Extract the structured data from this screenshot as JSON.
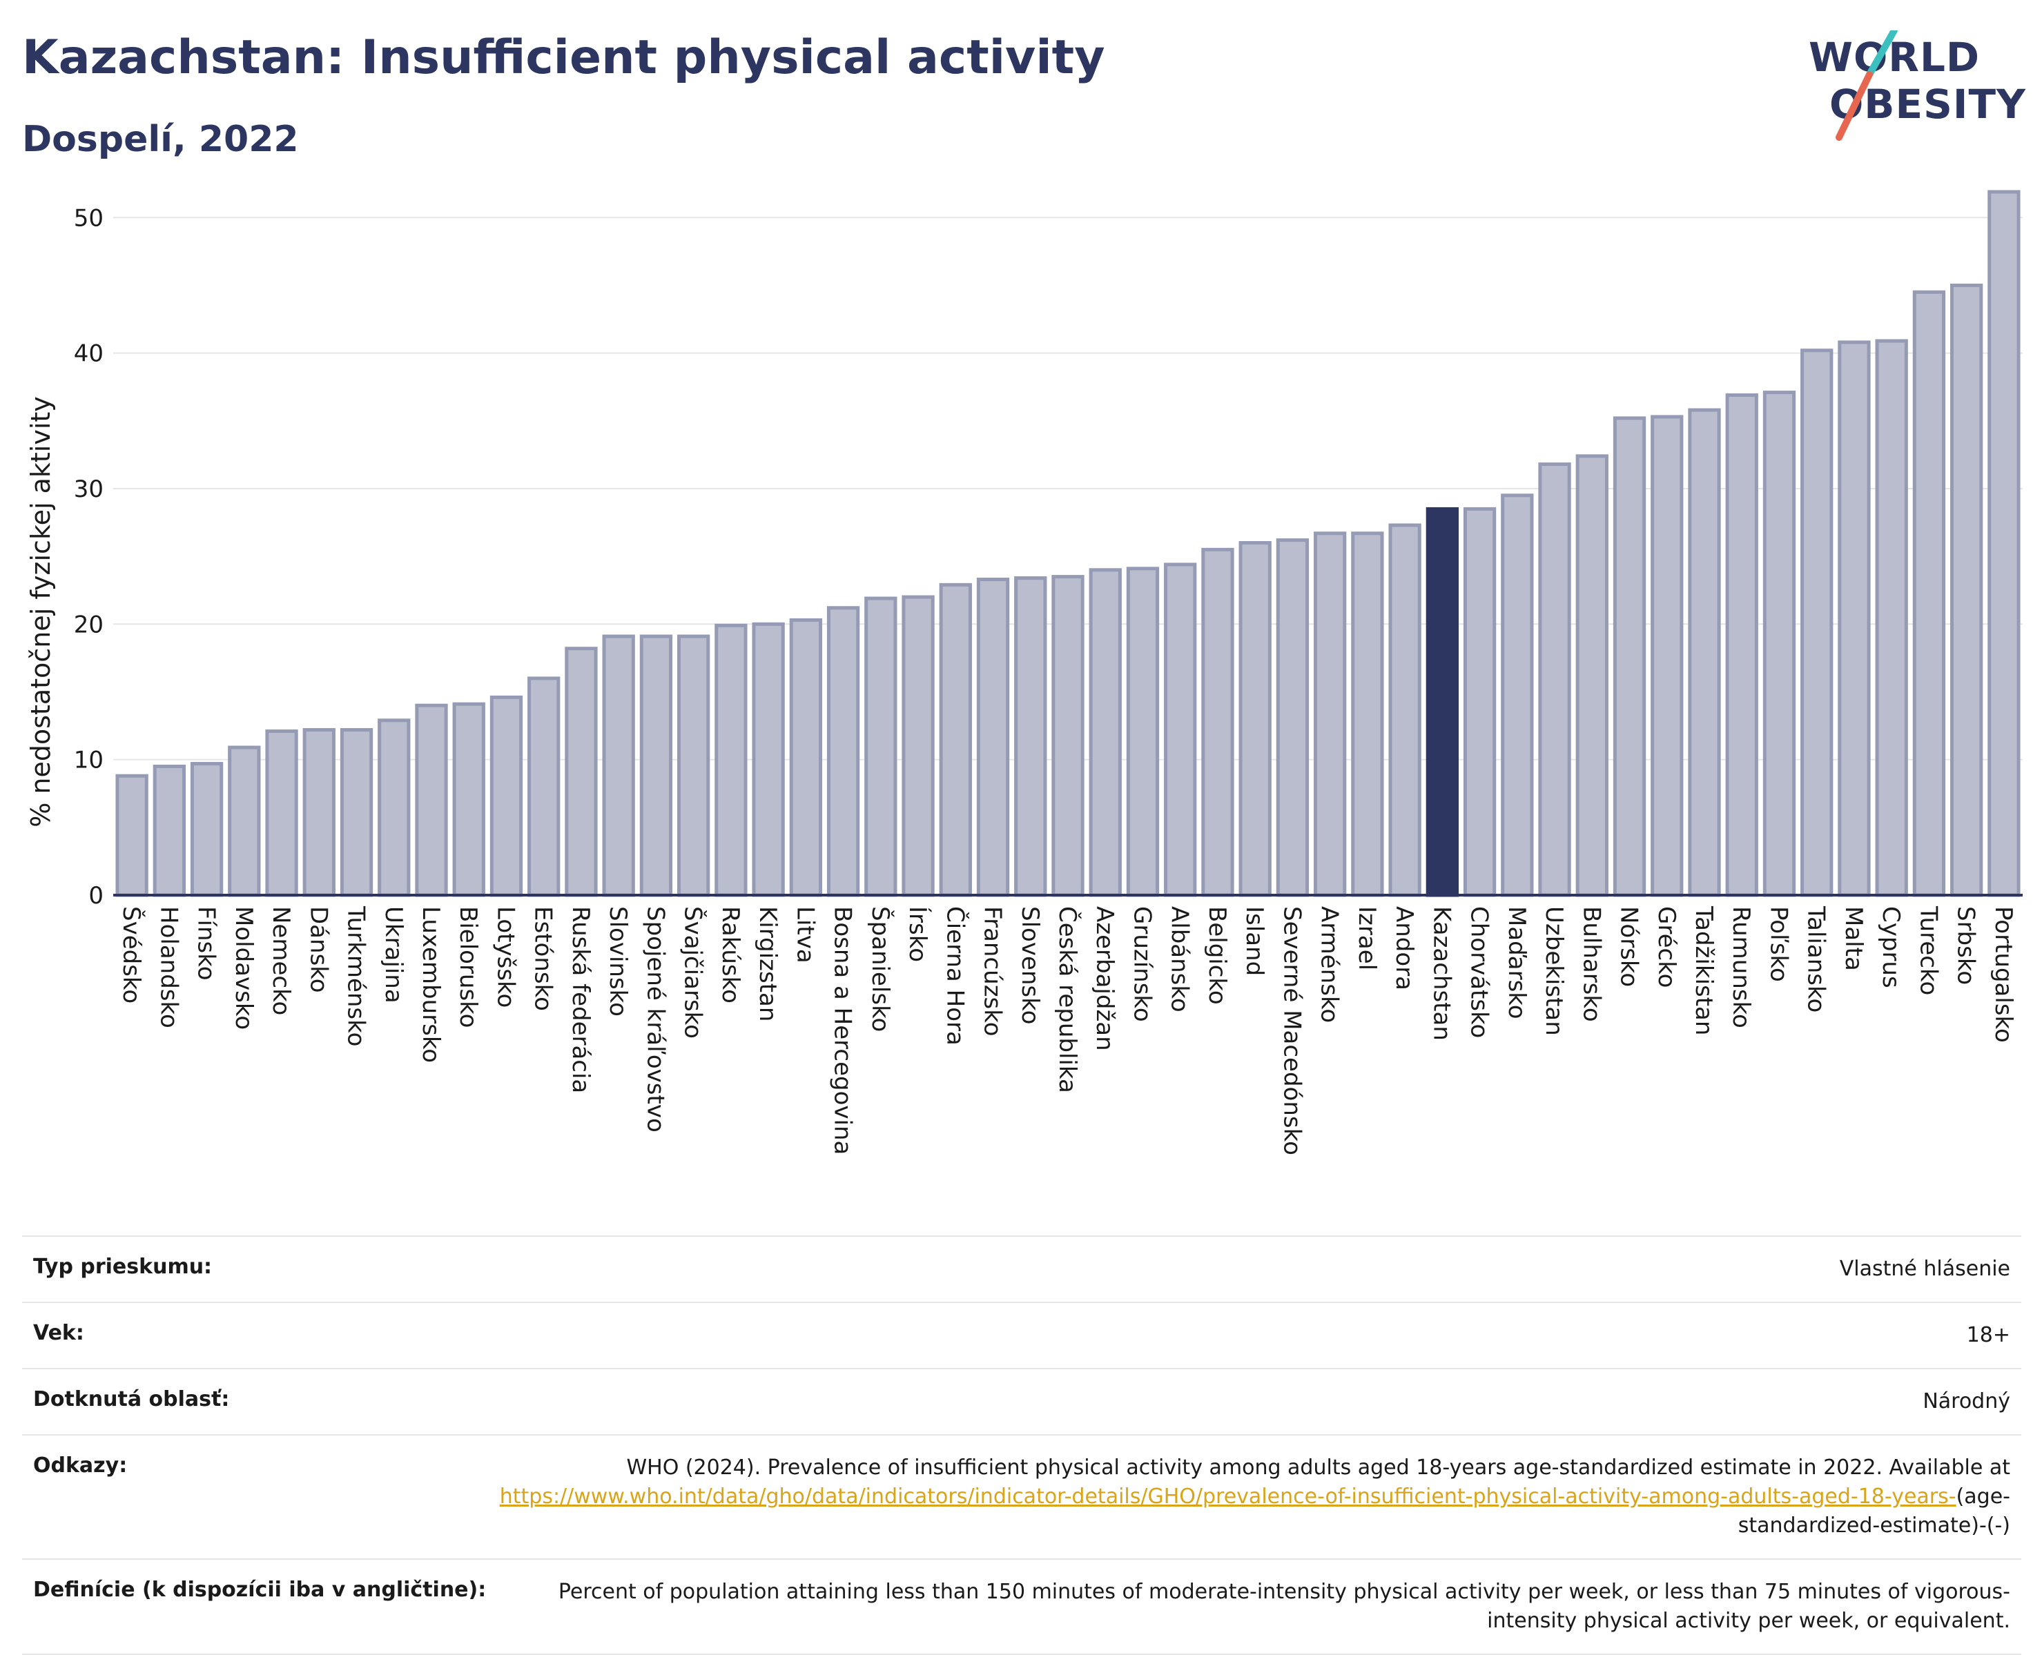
{
  "header": {
    "title": "Kazachstan: Insufficient physical activity",
    "subtitle": "Dospelí, 2022"
  },
  "logo": {
    "line1": "WORLD",
    "line2": "OBESITY",
    "text_color": "#2c3660",
    "slash_colors": [
      "#3cbfbf",
      "#e66650"
    ]
  },
  "chart_data": {
    "type": "bar",
    "ylabel": "% nedostatočnej fyzickej aktivity",
    "xlabel": "",
    "ylim": [
      0,
      52
    ],
    "yticks": [
      0,
      10,
      20,
      30,
      40,
      50
    ],
    "grid": true,
    "highlight": "Kazachstan",
    "colors": {
      "bar": "#b9bdcd",
      "bar_edge": "#959bb4",
      "highlight": "#2c3660",
      "grid": "#e6e6e6"
    },
    "categories": [
      "Švédsko",
      "Holandsko",
      "Fínsko",
      "Moldavsko",
      "Nemecko",
      "Dánsko",
      "Turkménsko",
      "Ukrajina",
      "Luxembursko",
      "Bielorusko",
      "Lotyšsko",
      "Estónsko",
      "Ruská federácia",
      "Slovinsko",
      "Spojené kráľovstvo",
      "Švajčiarsko",
      "Rakúsko",
      "Kirgizstan",
      "Litva",
      "Bosna a Hercegovina",
      "Španielsko",
      "Írsko",
      "Čierna Hora",
      "Francúzsko",
      "Slovensko",
      "Česká republika",
      "Azerbajdžan",
      "Gruzínsko",
      "Albánsko",
      "Belgicko",
      "Island",
      "Severné Macedónsko",
      "Arménsko",
      "Izrael",
      "Andora",
      "Kazachstan",
      "Chorvátsko",
      "Maďarsko",
      "Uzbekistan",
      "Bulharsko",
      "Nórsko",
      "Grécko",
      "Tadžikistan",
      "Rumunsko",
      "Poľsko",
      "Taliansko",
      "Malta",
      "Cyprus",
      "Turecko",
      "Srbsko",
      "Portugalsko"
    ],
    "values": [
      8.8,
      9.5,
      9.7,
      10.9,
      12.1,
      12.2,
      12.2,
      12.9,
      14.0,
      14.1,
      14.6,
      16.0,
      18.2,
      19.1,
      19.1,
      19.1,
      19.9,
      20.0,
      20.3,
      21.2,
      21.9,
      22.0,
      22.9,
      23.3,
      23.4,
      23.5,
      24.0,
      24.1,
      24.4,
      25.5,
      26.0,
      26.2,
      26.7,
      26.7,
      27.3,
      28.5,
      28.5,
      29.5,
      31.8,
      32.4,
      35.2,
      35.3,
      35.8,
      36.9,
      37.1,
      40.2,
      40.8,
      40.9,
      44.5,
      45.0,
      51.9
    ]
  },
  "meta": {
    "rows": [
      {
        "label": "Typ prieskumu:",
        "value": "Vlastné hlásenie"
      },
      {
        "label": "Vek:",
        "value": "18+"
      },
      {
        "label": "Dotknutá oblasť:",
        "value": "Národný"
      }
    ],
    "references": {
      "label": "Odkazy:",
      "text": "WHO (2024). Prevalence of insufficient physical activity among adults aged 18-years age-standardized estimate in 2022. Available at",
      "link": "https://www.who.int/data/gho/data/indicators/indicator-details/GHO/prevalence-of-insufficient-physical-activity-among-adults-aged-18-years-",
      "suffix": "(age-standardized-estimate)-(-)"
    },
    "definitions": {
      "label": "Definície (k dispozícii iba v angličtine):",
      "value": "Percent of population attaining less than 150 minutes of moderate-intensity physical activity per week, or less than 75 minutes of vigorous-intensity physical activity per week, or equivalent."
    }
  }
}
